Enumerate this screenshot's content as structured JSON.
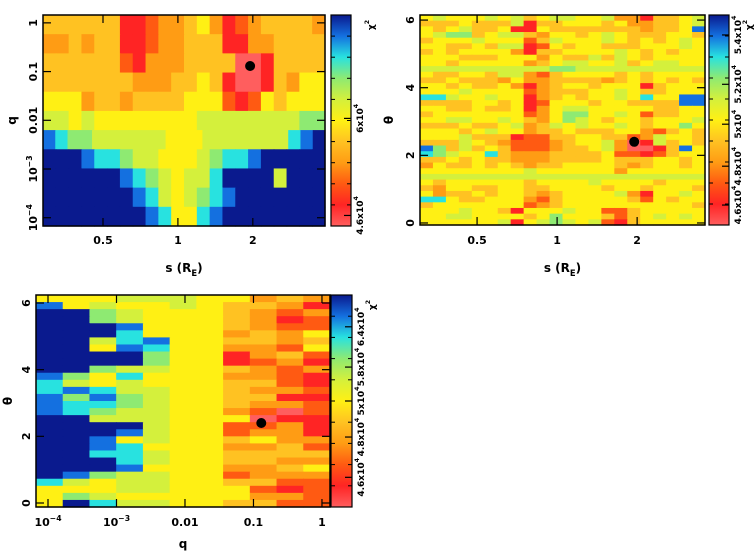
{
  "colormap": [
    "#ff5e5e",
    "#ff2424",
    "#ff5a12",
    "#ff9c14",
    "#ffc222",
    "#fff014",
    "#d4f03c",
    "#8eea72",
    "#28e2e0",
    "#1470e0",
    "#0a1a8e"
  ],
  "marker_color": "#000000",
  "chart_data": [
    {
      "type": "heatmap",
      "id": "p1",
      "xlabel": {
        "text": "s (R",
        "sub": "E",
        "tail": ")"
      },
      "ylabel": {
        "text": "q"
      },
      "xscale": "log",
      "xlim": [
        0.287,
        3.9
      ],
      "yscale": "log",
      "ylim": [
        6.76e-05,
        1.45
      ],
      "xticks": [
        {
          "v": 0.5,
          "t": "0.5"
        },
        {
          "v": 1,
          "t": "1"
        },
        {
          "v": 2,
          "t": "2"
        }
      ],
      "yticks": [
        {
          "v": 0.0001,
          "t": "10",
          "sup": "−4"
        },
        {
          "v": 0.001,
          "t": "10",
          "sup": "−3"
        },
        {
          "v": 0.01,
          "t": "0.01"
        },
        {
          "v": 0.1,
          "t": "0.1"
        },
        {
          "v": 1,
          "t": "1"
        }
      ],
      "colorbar": {
        "label": "χ",
        "sup": "2",
        "ticks": [
          {
            "level": 0.5,
            "t": "4.6x10",
            "sup": "4"
          },
          {
            "level": 5.1,
            "t": "6x10",
            "sup": "4"
          }
        ]
      },
      "best_fit": {
        "x": 1.95,
        "y": 0.13
      },
      "grid": [
        "4444441123345312344443",
        "3343441123344411334444",
        "4444442133344440014444",
        "4444444333445410014355",
        "5553443444455521254555",
        "6656555555556666666677",
        "9877666666555666666689a",
        "aaa98876655567889aaaaa",
        "aaaaaa98765668aaaa6aaa",
        "aaaaaaa98656789aaaaaaa",
        "aaaaaaaa985589aaaaaaaa"
      ]
    },
    {
      "type": "heatmap",
      "id": "p2",
      "xlabel": {
        "text": "s (R",
        "sub": "E",
        "tail": ")"
      },
      "ylabel": {
        "text": "θ"
      },
      "xscale": "log",
      "xlim": [
        0.305,
        3.6
      ],
      "yscale": "linear",
      "ylim": [
        -0.06,
        6.15
      ],
      "xticks": [
        {
          "v": 0.5,
          "t": "0.5"
        },
        {
          "v": 1,
          "t": "1"
        },
        {
          "v": 2,
          "t": "2"
        }
      ],
      "yticks": [
        {
          "v": 0,
          "t": "0"
        },
        {
          "v": 2,
          "t": "2"
        },
        {
          "v": 4,
          "t": "4"
        },
        {
          "v": 6,
          "t": "6"
        }
      ],
      "colorbar": {
        "label": "χ",
        "sup": "2",
        "ticks": [
          {
            "level": 0.95,
            "t": "4.6x10",
            "sup": "4"
          },
          {
            "level": 2.8,
            "t": "4.8x10",
            "sup": "4"
          },
          {
            "level": 4.8,
            "t": "5x10",
            "sup": "4"
          },
          {
            "level": 6.7,
            "t": "5.2x10",
            "sup": "4"
          },
          {
            "level": 9.05,
            "t": "5.4x10",
            "sup": "4"
          }
        ]
      },
      "best_fit": {
        "x": 1.95,
        "y": 2.4
      },
      "grid": [
        "5655565645665563314456",
        "4445444614455545334456",
        "5456445115444444434459",
        "5677456643554565444554",
        "4555655524655565454565",
        "5544546612545544455565",
        "4545555314455556545455",
        "5554445553544646545555",
        "5545555534566556456655",
        "6666666666776666666666",
        "5445546632455554545555",
        "4454443533444434545454",
        "5545445313455455514555",
        "5556555523444556544555",
        "8865565513454556585599",
        "4444554512555455444499",
        "5544544513566555554455",
        "4555555523577556524455",
        "5566556543576545545556",
        "4445445634656556545575",
        "5554565534454445532454",
        "5556444122445544236554",
        "4446543222345563016454",
        "9746454222344563001495",
        "8765584333444452212455",
        "4454544333444454445545",
        "3544545434455554345545",
        "5555555565555553555555",
        "6666666666666666666666",
        "5455555545555655554555",
        "4355445544555545545554",
        "5344545543455556315565",
        "8854455532455555425455",
        "4555555523455555555554",
        "5556554155565522455555",
        "5566555545755542456565",
        "5555556156765621455555"
      ]
    },
    {
      "type": "heatmap",
      "id": "p3",
      "xlabel": {
        "text": "q"
      },
      "ylabel": {
        "text": "θ"
      },
      "xscale": "log",
      "xlim": [
        6.68e-05,
        1.31
      ],
      "yscale": "linear",
      "ylim": [
        -0.12,
        6.24
      ],
      "xticks": [
        {
          "v": 0.0001,
          "t": "10",
          "sup": "−4"
        },
        {
          "v": 0.001,
          "t": "10",
          "sup": "−3"
        },
        {
          "v": 0.01,
          "t": "0.01"
        },
        {
          "v": 0.1,
          "t": "0.1"
        },
        {
          "v": 1,
          "t": "1"
        }
      ],
      "yticks": [
        {
          "v": 0,
          "t": "0"
        },
        {
          "v": 2,
          "t": "2"
        },
        {
          "v": 4,
          "t": "4"
        },
        {
          "v": 6,
          "t": "6"
        }
      ],
      "colorbar": {
        "label": "χ",
        "sup": "2",
        "ticks": [
          {
            "level": 1.4,
            "t": "4.6x10",
            "sup": "4"
          },
          {
            "level": 3.3,
            "t": "4.8x10",
            "sup": "4"
          },
          {
            "level": 5.0,
            "t": "5x10",
            "sup": "4"
          },
          {
            "level": 6.6,
            "t": "5.8x10",
            "sup": "4"
          },
          {
            "level": 8.5,
            "t": "6.4x10",
            "sup": "4"
          }
        ]
      },
      "best_fit": {
        "x": 0.13,
        "y": 2.4
      },
      "grid": [
        "55566655343",
        "95655654431",
        "aa765554323",
        "aa765554312",
        "aaa95554322",
        "aaa85553435",
        "aa689554434",
        "aa598553325",
        "aaaa7551342",
        "aaaa7551231",
        "aa766554323",
        "97585553321",
        "86565554421",
        "89866554332",
        "97976554411",
        "98876554332",
        "98766553202",
        "aa666555011",
        "aaaa6552231",
        "aaa96552331",
        "aa956554533",
        "aa985553342",
        "aa886554444",
        "aaa86554433",
        "aaa95553345",
        "a9766552333",
        "86566554422",
        "55566555212",
        "57655555332",
        "5a866554422"
      ]
    }
  ]
}
